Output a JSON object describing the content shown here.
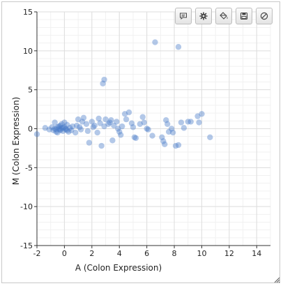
{
  "toolbar": {
    "buttons": [
      {
        "icon": "comment-icon"
      },
      {
        "icon": "gear-icon"
      },
      {
        "icon": "paint-bucket-icon"
      },
      {
        "icon": "save-icon"
      },
      {
        "icon": "prohibit-icon"
      }
    ]
  },
  "chart_data": {
    "type": "scatter",
    "title": "",
    "xlabel": "A (Colon Expression)",
    "ylabel": "M (Colon Expression)",
    "xlim": [
      -2,
      15
    ],
    "ylim": [
      -15,
      15
    ],
    "xticks": [
      -2,
      0,
      2,
      4,
      6,
      8,
      10,
      12,
      14
    ],
    "yticks": [
      -15,
      -10,
      -5,
      0,
      5,
      10,
      15
    ],
    "grid": true,
    "point_color": "#4a7cc7",
    "series": [
      {
        "points": [
          [
            6.6,
            11.1
          ],
          [
            8.3,
            10.5
          ],
          [
            2.9,
            6.3
          ],
          [
            2.8,
            5.8
          ],
          [
            -2.0,
            -0.7
          ],
          [
            -1.4,
            0.1
          ],
          [
            -1.1,
            -0.1
          ],
          [
            -0.9,
            0.2
          ],
          [
            -0.8,
            -0.2
          ],
          [
            -0.7,
            0.0
          ],
          [
            -0.6,
            -0.4
          ],
          [
            -0.5,
            0.2
          ],
          [
            -0.4,
            0.0
          ],
          [
            -0.3,
            -0.2
          ],
          [
            -0.3,
            0.4
          ],
          [
            -0.2,
            0.1
          ],
          [
            -0.1,
            -0.3
          ],
          [
            0.0,
            0.2
          ],
          [
            0.1,
            -0.1
          ],
          [
            0.2,
            0.5
          ],
          [
            0.3,
            -0.4
          ],
          [
            0.4,
            0.1
          ],
          [
            0.5,
            -0.2
          ],
          [
            0.6,
            0.3
          ],
          [
            -0.7,
            0.8
          ],
          [
            -0.5,
            -0.5
          ],
          [
            0.0,
            0.8
          ],
          [
            -0.2,
            0.6
          ],
          [
            0.1,
            0.0
          ],
          [
            -0.6,
            -0.1
          ],
          [
            -0.4,
            0.3
          ],
          [
            -0.3,
            -0.1
          ],
          [
            -0.1,
            0.1
          ],
          [
            0.2,
            -0.2
          ],
          [
            0.9,
            0.4
          ],
          [
            1.0,
            1.2
          ],
          [
            1.1,
            0.2
          ],
          [
            1.3,
            0.9
          ],
          [
            1.4,
            1.4
          ],
          [
            1.6,
            0.6
          ],
          [
            1.7,
            -0.3
          ],
          [
            1.8,
            -1.8
          ],
          [
            2.0,
            0.9
          ],
          [
            2.1,
            0.2
          ],
          [
            2.2,
            0.4
          ],
          [
            2.4,
            -0.5
          ],
          [
            2.5,
            1.3
          ],
          [
            2.6,
            0.7
          ],
          [
            2.7,
            -2.2
          ],
          [
            2.9,
            0.3
          ],
          [
            3.0,
            1.2
          ],
          [
            3.2,
            0.6
          ],
          [
            3.3,
            0.8
          ],
          [
            3.5,
            -1.5
          ],
          [
            3.6,
            0.4
          ],
          [
            3.8,
            0.9
          ],
          [
            3.9,
            0.0
          ],
          [
            4.0,
            -0.4
          ],
          [
            4.2,
            0.3
          ],
          [
            4.4,
            1.9
          ],
          [
            4.5,
            1.2
          ],
          [
            4.7,
            2.1
          ],
          [
            4.9,
            0.7
          ],
          [
            5.0,
            0.2
          ],
          [
            5.1,
            -1.1
          ],
          [
            5.2,
            -1.2
          ],
          [
            5.5,
            0.6
          ],
          [
            5.7,
            1.5
          ],
          [
            5.8,
            0.8
          ],
          [
            6.0,
            0.0
          ],
          [
            6.1,
            -0.1
          ],
          [
            7.1,
            -1.1
          ],
          [
            7.2,
            -1.6
          ],
          [
            7.3,
            -2.0
          ],
          [
            7.4,
            1.1
          ],
          [
            7.5,
            0.6
          ],
          [
            7.6,
            -0.4
          ],
          [
            7.8,
            0.0
          ],
          [
            7.9,
            -0.5
          ],
          [
            8.1,
            -2.2
          ],
          [
            8.3,
            -2.1
          ],
          [
            8.5,
            0.8
          ],
          [
            8.7,
            0.1
          ],
          [
            9.0,
            0.9
          ],
          [
            9.2,
            0.9
          ],
          [
            9.7,
            1.6
          ],
          [
            9.8,
            0.8
          ],
          [
            10.0,
            1.9
          ],
          [
            10.6,
            -1.1
          ],
          [
            0.8,
            -0.5
          ],
          [
            1.2,
            -0.1
          ],
          [
            3.4,
            1.1
          ],
          [
            4.1,
            -0.8
          ],
          [
            6.4,
            -0.9
          ]
        ]
      }
    ]
  }
}
